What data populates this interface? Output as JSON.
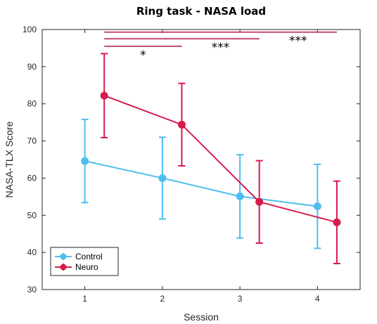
{
  "chart_data": {
    "type": "line",
    "title": "Ring task - NASA load",
    "xlabel": "Session",
    "ylabel": "NASA-TLX Score",
    "xlim": [
      0.45,
      4.55
    ],
    "ylim": [
      30,
      100
    ],
    "x": [
      1,
      2,
      3,
      4
    ],
    "xticks": [
      1,
      2,
      3,
      4
    ],
    "yticks": [
      30,
      40,
      50,
      60,
      70,
      80,
      90,
      100
    ],
    "series": [
      {
        "name": "Control",
        "color": "#4DBEEE",
        "values": [
          64.6,
          60.0,
          55.1,
          52.4
        ],
        "error": [
          11.2,
          11.0,
          11.2,
          11.3
        ]
      },
      {
        "name": "Neuro",
        "color": "#D81B4C",
        "values": [
          82.2,
          74.4,
          53.6,
          48.1
        ],
        "error": [
          11.3,
          11.1,
          11.1,
          11.1
        ]
      }
    ],
    "significance": [
      {
        "from": 1.25,
        "to": 2.25,
        "y": 95.5,
        "label": "*",
        "label_x": 1.75
      },
      {
        "from": 1.25,
        "to": 3.25,
        "y": 97.5,
        "label": "***",
        "label_x": 2.75
      },
      {
        "from": 1.25,
        "to": 4.25,
        "y": 99.3,
        "label": "***",
        "label_x": 3.75
      }
    ],
    "significance_color": "#B8245B",
    "legend_position": "bottom-left"
  }
}
